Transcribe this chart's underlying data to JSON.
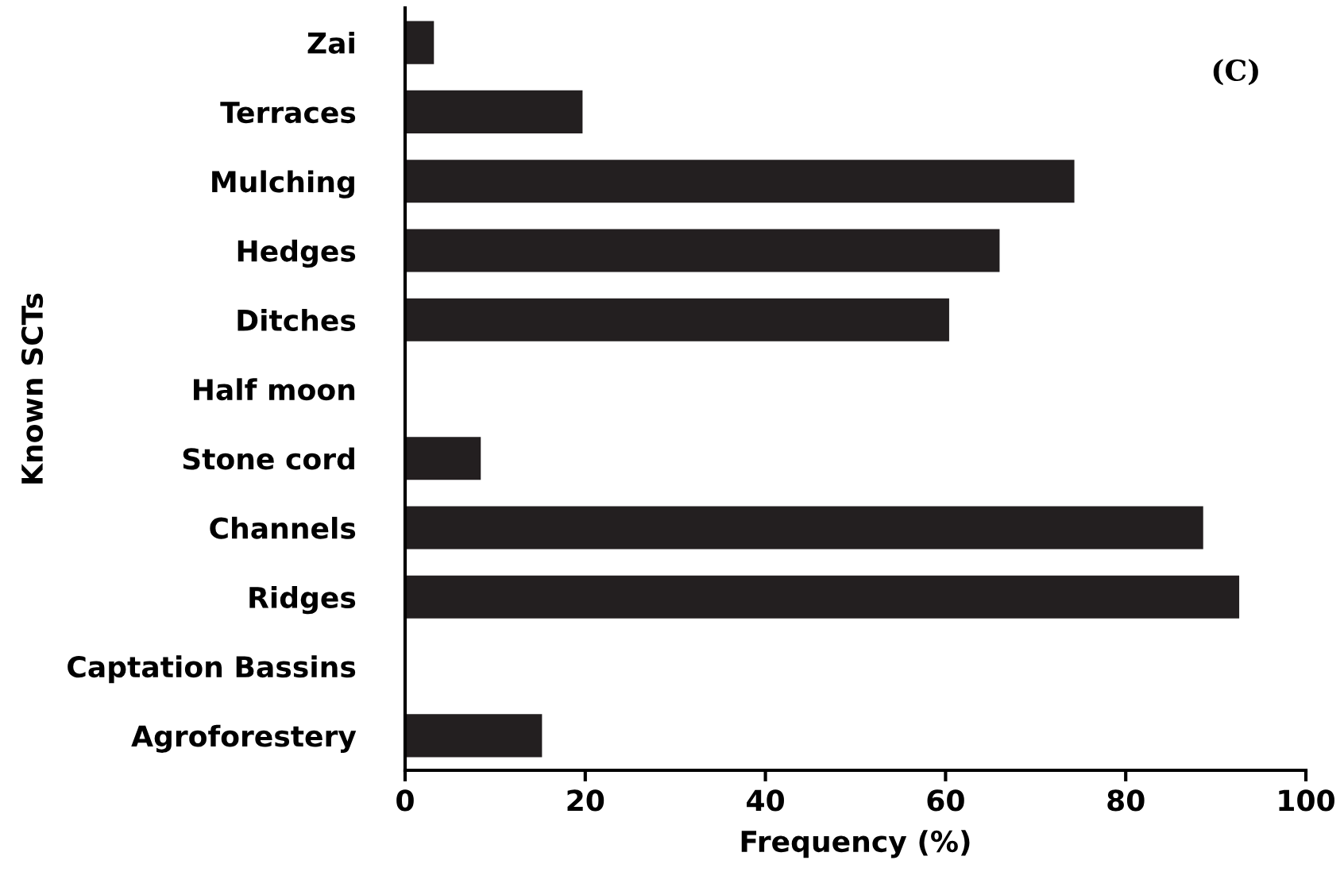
{
  "chart_data": {
    "type": "bar",
    "orientation": "horizontal",
    "categories": [
      "Zai",
      "Terraces",
      "Mulching",
      "Hedges",
      "Ditches",
      "Half moon",
      "Stone cord",
      "Channels",
      "Ridges",
      "Captation Bassins",
      "Agroforestery"
    ],
    "values": [
      3.2,
      19.7,
      74.3,
      66.0,
      60.4,
      0,
      8.4,
      88.6,
      92.6,
      0,
      15.2
    ],
    "color": "#231f20",
    "xlabel": "Frequency (%)",
    "ylabel": "Known SCTs",
    "xlim": [
      0,
      100
    ],
    "xticks": [
      0,
      20,
      40,
      60,
      80,
      100
    ],
    "grid": false,
    "annotations": [
      "(C)"
    ]
  }
}
